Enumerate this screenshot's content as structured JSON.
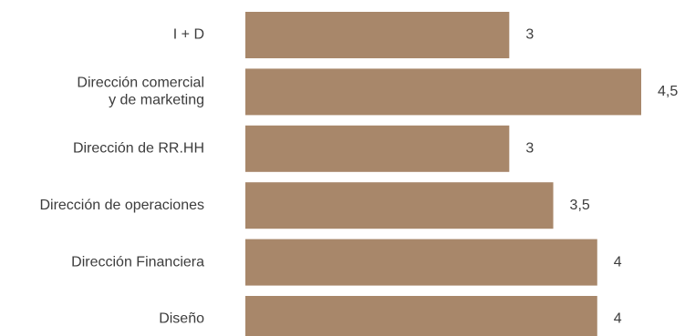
{
  "chart_data": {
    "type": "bar",
    "orientation": "horizontal",
    "categories": [
      [
        "I + D"
      ],
      [
        "Dirección comercial",
        "y de marketing"
      ],
      [
        "Dirección de RR.HH"
      ],
      [
        "Dirección de operaciones"
      ],
      [
        "Dirección Financiera"
      ],
      [
        "Diseño"
      ]
    ],
    "values": [
      3,
      4.5,
      3,
      3.5,
      4,
      4
    ],
    "value_labels": [
      "3",
      "4,5",
      "3",
      "3,5",
      "4",
      "4"
    ],
    "title": "",
    "xlabel": "",
    "ylabel": "",
    "xlim": [
      0,
      4.5
    ],
    "grid": false,
    "legend": "none",
    "bar_color": "#a8876a"
  }
}
